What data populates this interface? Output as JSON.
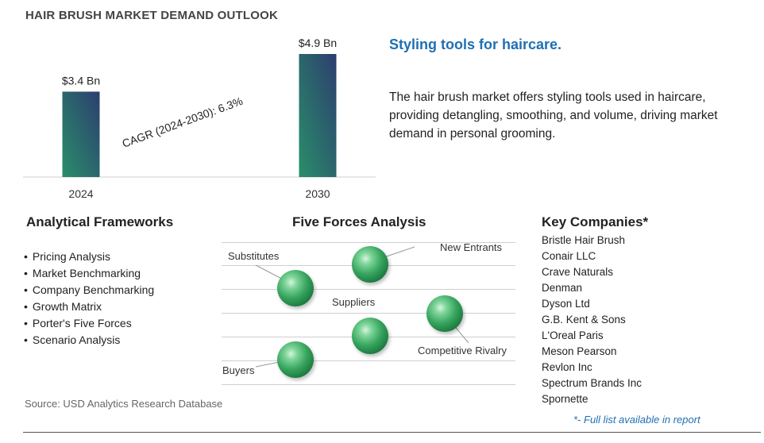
{
  "title": "HAIR BRUSH MARKET DEMAND OUTLOOK",
  "chart_data": {
    "type": "bar",
    "categories": [
      "2024",
      "2030"
    ],
    "values": [
      3.4,
      4.9
    ],
    "data_labels": [
      "$3.4 Bn",
      "$4.9 Bn"
    ],
    "annotation": "CAGR (2024-2030):  6.3%",
    "colors": [
      "#2a8e6a",
      "#2c3e6e"
    ]
  },
  "headline": "Styling tools for haircare.",
  "description": "The hair brush market offers styling tools used in haircare, providing detangling, smoothing, and volume, driving market demand in personal grooming.",
  "frameworks": {
    "title": "Analytical Frameworks",
    "items": [
      "Pricing Analysis",
      "Market Benchmarking",
      "Company Benchmarking",
      "Growth Matrix",
      "Porter's Five Forces",
      "Scenario Analysis"
    ]
  },
  "five_forces": {
    "title": "Five Forces Analysis",
    "labels": {
      "new_entrants": "New Entrants",
      "substitutes": "Substitutes",
      "suppliers": "Suppliers",
      "competitive_rivalry": "Competitive Rivalry",
      "buyers": "Buyers"
    },
    "sphere_color": "#2e9a55"
  },
  "companies": {
    "title": "Key Companies*",
    "items": [
      "Bristle Hair Brush",
      "Conair LLC",
      "Crave Naturals",
      "Denman",
      "Dyson Ltd",
      "G.B. Kent & Sons",
      "L'Oreal Paris",
      "Meson Pearson",
      "Revlon Inc",
      "Spectrum Brands Inc",
      "Spornette"
    ],
    "note": "*- Full list available in report"
  },
  "source": "Source: USD Analytics Research Database"
}
